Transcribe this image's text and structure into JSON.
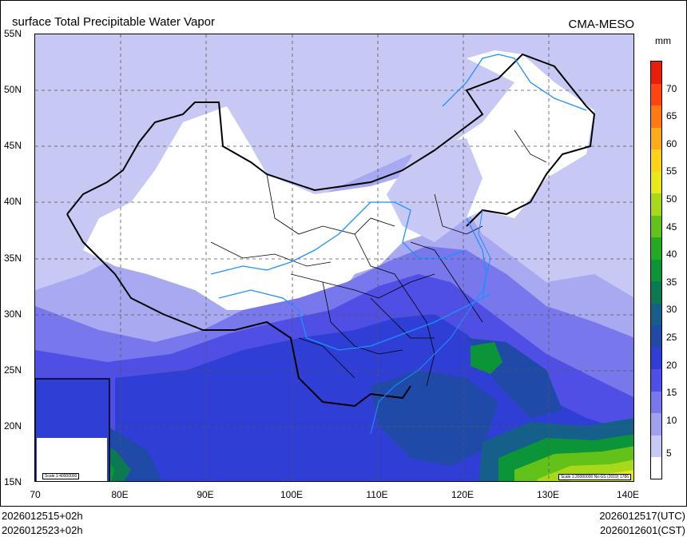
{
  "header": {
    "title": "surface Total Precipitable Water Vapor",
    "model": "CMA-MESO",
    "unit": "mm"
  },
  "map": {
    "lat_labels": [
      "55N",
      "50N",
      "45N",
      "40N",
      "35N",
      "30N",
      "25N",
      "20N",
      "15N"
    ],
    "lon_labels": [
      "70",
      "80E",
      "90E",
      "100E",
      "110E",
      "120E",
      "130E",
      "140E"
    ],
    "lat_range": [
      15,
      55
    ],
    "lon_range": [
      70,
      140
    ],
    "scale_main": "Scale 1:20000000 No:GS (2019) 1786",
    "scale_inset": "Scale 1:40000000"
  },
  "colorbar": {
    "labels": [
      "70",
      "65",
      "60",
      "55",
      "50",
      "45",
      "40",
      "35",
      "30",
      "25",
      "20",
      "15",
      "10",
      "5"
    ],
    "colors": [
      "#ffffff",
      "#c8c8f5",
      "#a0a0f0",
      "#7878ec",
      "#4f4fe6",
      "#2f3fd6",
      "#1f4aa8",
      "#15608a",
      "#0b7a52",
      "#0c9438",
      "#22aa22",
      "#63c21a",
      "#a8d81a",
      "#e8e81a",
      "#ffd21a",
      "#ffaa1a",
      "#ff7a14",
      "#ff4610",
      "#e81e0a"
    ]
  },
  "footer": {
    "left_line1": "2026012515+02h",
    "left_line2": "2026012523+02h",
    "right_line1": "2026012517(UTC)",
    "right_line2": "2026012601(CST)"
  }
}
